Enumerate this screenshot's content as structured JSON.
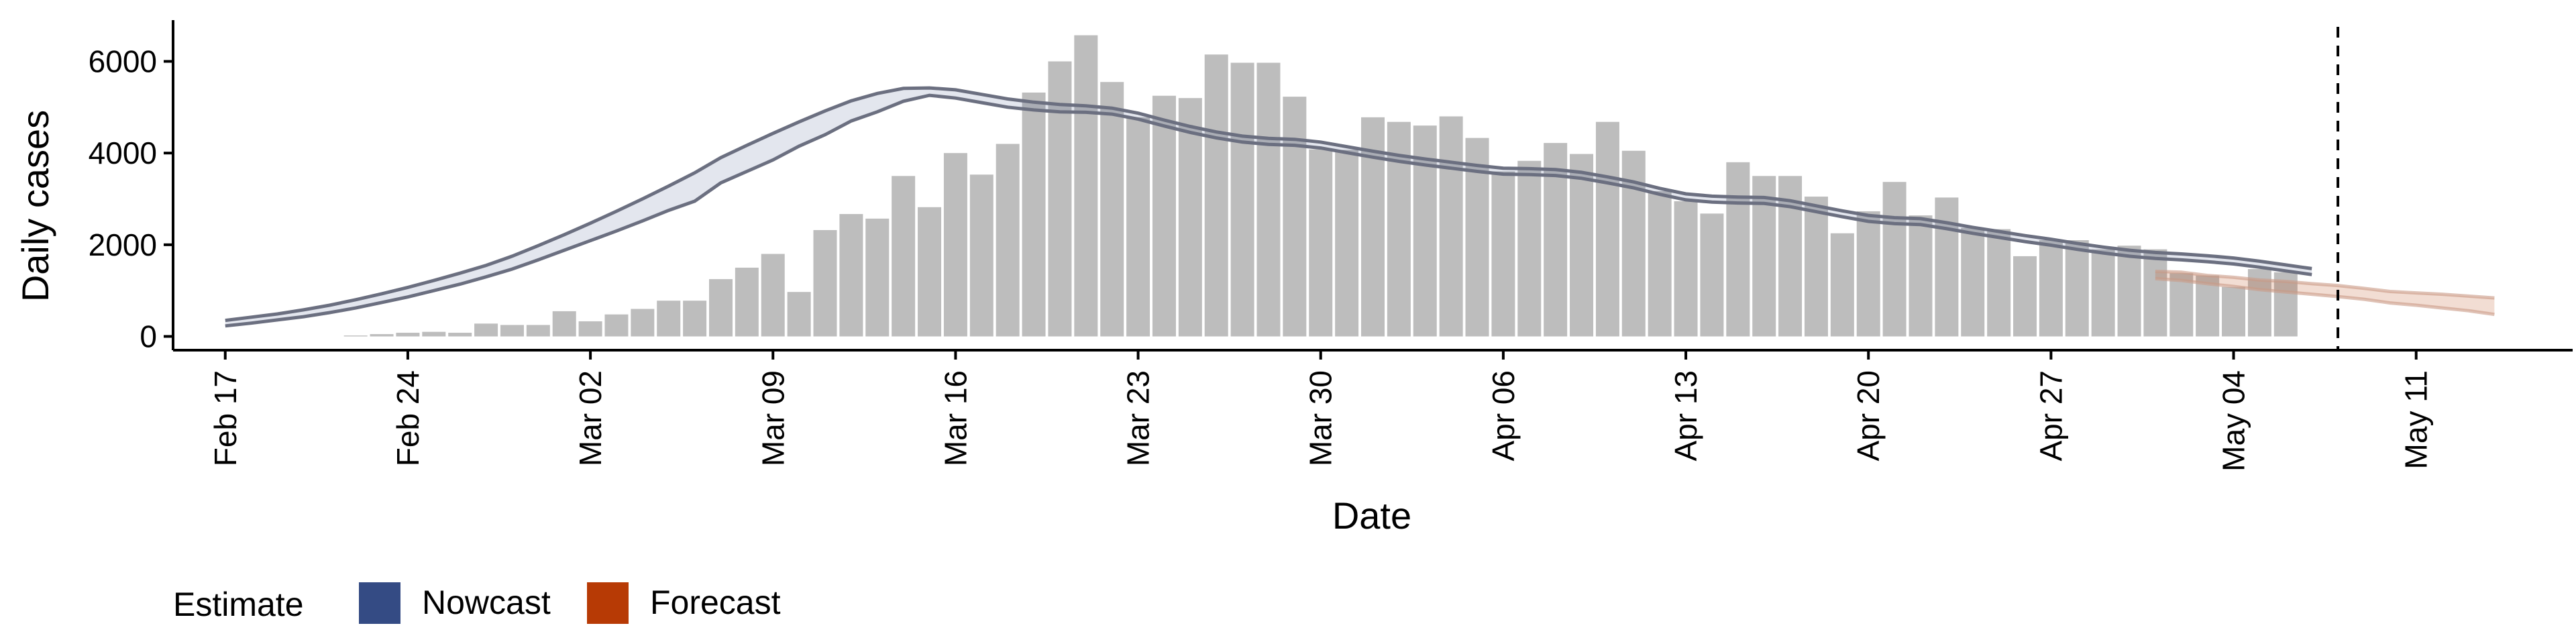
{
  "chart_data": {
    "type": "bar",
    "xlabel": "Date",
    "ylabel": "Daily cases",
    "xlim": [
      "2020-02-15",
      "2020-05-17"
    ],
    "ylim": [
      -300,
      6900
    ],
    "y_ticks": [
      0,
      2000,
      4000,
      6000
    ],
    "x_ticks": [
      {
        "date": "2020-02-17",
        "label": "Feb 17"
      },
      {
        "date": "2020-02-24",
        "label": "Feb 24"
      },
      {
        "date": "2020-03-02",
        "label": "Mar 02"
      },
      {
        "date": "2020-03-09",
        "label": "Mar 09"
      },
      {
        "date": "2020-03-16",
        "label": "Mar 16"
      },
      {
        "date": "2020-03-23",
        "label": "Mar 23"
      },
      {
        "date": "2020-03-30",
        "label": "Mar 30"
      },
      {
        "date": "2020-04-06",
        "label": "Apr 06"
      },
      {
        "date": "2020-04-13",
        "label": "Apr 13"
      },
      {
        "date": "2020-04-20",
        "label": "Apr 20"
      },
      {
        "date": "2020-04-27",
        "label": "Apr 27"
      },
      {
        "date": "2020-05-04",
        "label": "May 04"
      },
      {
        "date": "2020-05-11",
        "label": "May 11"
      }
    ],
    "vline_date": "2020-05-08",
    "bars": {
      "start_date": "2020-02-22",
      "values": [
        20,
        50,
        80,
        100,
        80,
        280,
        250,
        250,
        550,
        330,
        480,
        600,
        780,
        780,
        1250,
        1500,
        1800,
        970,
        2320,
        2670,
        2570,
        3500,
        2820,
        4000,
        3530,
        4200,
        5320,
        6000,
        6570,
        5550,
        4780,
        5250,
        5200,
        6150,
        5970,
        5970,
        5230,
        4080,
        4070,
        4780,
        4680,
        4600,
        4800,
        4330,
        3600,
        3830,
        4220,
        3980,
        4680,
        4050,
        3170,
        2950,
        2680,
        3800,
        3500,
        3500,
        3050,
        2250,
        2730,
        3370,
        2640,
        3030,
        2370,
        2340,
        1750,
        2100,
        2100,
        1900,
        1980,
        1900,
        1380,
        1330,
        1080,
        1470,
        1400
      ]
    },
    "series": [
      {
        "name": "Nowcast",
        "start_date": "2020-02-17",
        "dates_step": 1,
        "upper": [
          350,
          420,
          490,
          580,
          680,
          800,
          930,
          1070,
          1220,
          1380,
          1550,
          1750,
          1980,
          2220,
          2470,
          2730,
          3000,
          3280,
          3570,
          3900,
          4170,
          4430,
          4680,
          4920,
          5140,
          5300,
          5410,
          5420,
          5380,
          5280,
          5180,
          5110,
          5060,
          5030,
          4980,
          4870,
          4720,
          4580,
          4460,
          4370,
          4320,
          4300,
          4240,
          4140,
          4040,
          3950,
          3870,
          3800,
          3730,
          3670,
          3660,
          3640,
          3580,
          3480,
          3370,
          3230,
          3110,
          3060,
          3040,
          3030,
          2960,
          2850,
          2740,
          2640,
          2590,
          2570,
          2480,
          2380,
          2290,
          2200,
          2120,
          2030,
          1950,
          1880,
          1830,
          1800,
          1760,
          1710,
          1640,
          1560,
          1480
        ],
        "lower": [
          230,
          290,
          360,
          430,
          520,
          620,
          740,
          860,
          1000,
          1140,
          1300,
          1470,
          1670,
          1880,
          2090,
          2300,
          2520,
          2750,
          2950,
          3350,
          3600,
          3850,
          4150,
          4400,
          4700,
          4900,
          5130,
          5260,
          5200,
          5100,
          5000,
          4940,
          4900,
          4890,
          4850,
          4740,
          4590,
          4450,
          4330,
          4240,
          4190,
          4170,
          4110,
          4010,
          3910,
          3820,
          3740,
          3670,
          3600,
          3540,
          3530,
          3510,
          3450,
          3350,
          3240,
          3100,
          2980,
          2930,
          2910,
          2900,
          2830,
          2720,
          2610,
          2510,
          2460,
          2440,
          2350,
          2250,
          2160,
          2070,
          1990,
          1900,
          1820,
          1750,
          1700,
          1670,
          1630,
          1580,
          1510,
          1430,
          1350
        ],
        "color": "#3a4f8a"
      },
      {
        "name": "Forecast",
        "start_date": "2020-05-01",
        "dates_step": 1,
        "upper": [
          1420,
          1400,
          1330,
          1290,
          1230,
          1200,
          1150,
          1110,
          1050,
          980,
          950,
          920,
          880,
          840
        ],
        "lower": [
          1260,
          1220,
          1150,
          1090,
          1020,
          970,
          920,
          870,
          810,
          730,
          680,
          620,
          560,
          480
        ],
        "color": "#b8410c"
      }
    ],
    "legend": {
      "title": "Estimate",
      "position": "bottom-left",
      "items": [
        {
          "name": "Nowcast",
          "color": "#344b84"
        },
        {
          "name": "Forecast",
          "color": "#b73a05"
        }
      ]
    },
    "grid": false
  }
}
